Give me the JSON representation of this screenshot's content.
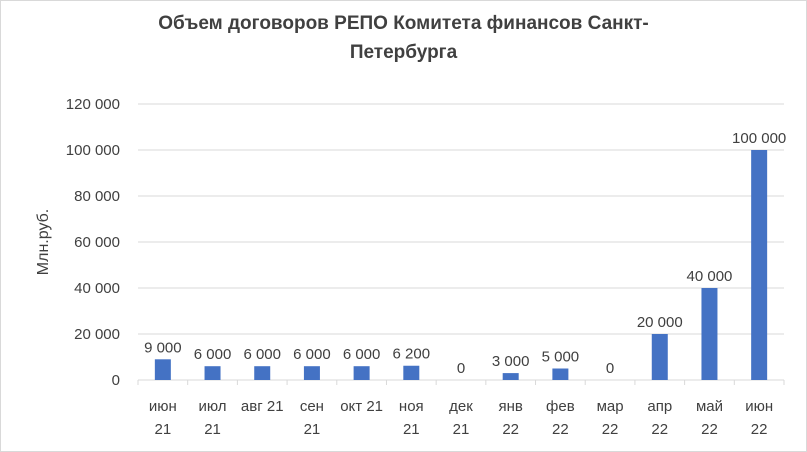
{
  "chart_data": {
    "type": "bar",
    "title_line1": "Объем договоров  РЕПО Комитета финансов Санкт-",
    "title_line2": "Петербурга",
    "xlabel": "",
    "ylabel": "Млн.руб.",
    "ylim": [
      0,
      120000
    ],
    "yticks": [
      0,
      20000,
      40000,
      60000,
      80000,
      100000,
      120000
    ],
    "ytick_labels": [
      "0",
      "20 000",
      "40 000",
      "60 000",
      "80 000",
      "100 000",
      "120 000"
    ],
    "grid": "horizontal",
    "legend": "none",
    "bar_color": "#4472c4",
    "grid_color": "#d9d9d9",
    "categories": [
      [
        "июн",
        "21"
      ],
      [
        "июл",
        "21"
      ],
      [
        "авг 21",
        ""
      ],
      [
        "сен",
        "21"
      ],
      [
        "окт 21",
        ""
      ],
      [
        "ноя",
        "21"
      ],
      [
        "дек",
        "21"
      ],
      [
        "янв",
        "22"
      ],
      [
        "фев",
        "22"
      ],
      [
        "мар",
        "22"
      ],
      [
        "апр",
        "22"
      ],
      [
        "май",
        "22"
      ],
      [
        "июн",
        "22"
      ]
    ],
    "values": [
      9000,
      6000,
      6000,
      6000,
      6000,
      6200,
      0,
      3000,
      5000,
      0,
      20000,
      40000,
      100000
    ],
    "value_labels": [
      "9 000",
      "6 000",
      "6 000",
      "6 000",
      "6 000",
      "6 200",
      "0",
      "3 000",
      "5 000",
      "0",
      "20 000",
      "40 000",
      "100 000"
    ]
  }
}
